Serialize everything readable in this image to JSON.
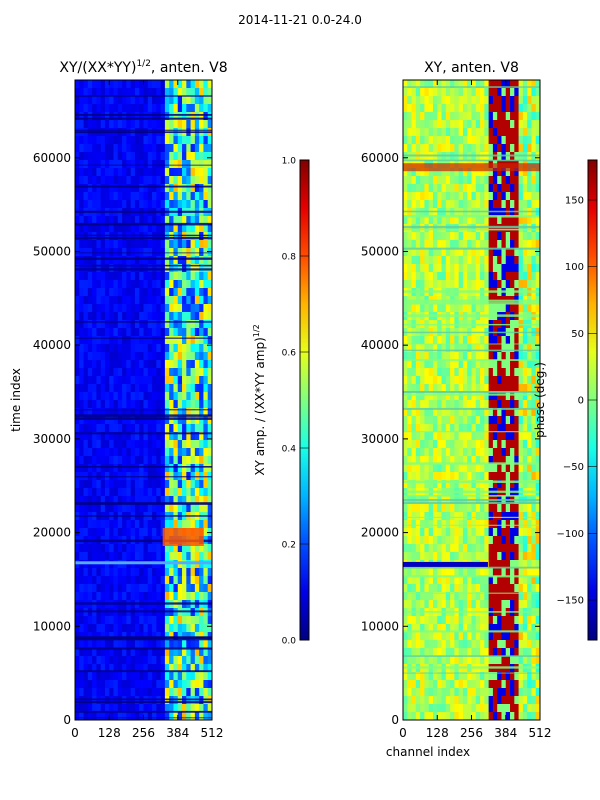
{
  "figure_title": "2014-11-21 0.0-24.0",
  "chart_data": [
    {
      "type": "heatmap",
      "title": "XY/(XX*YY)^1/2, anten. V8",
      "title_main": "XY/(XX*YY)",
      "title_exp": "1/2",
      "title_tail": ", anten. V8",
      "xlabel": "",
      "ylabel": "time index",
      "xlim": [
        0,
        512
      ],
      "ylim": [
        0,
        68300
      ],
      "xticks": [
        0,
        128,
        256,
        384,
        512
      ],
      "yticks": [
        0,
        10000,
        20000,
        30000,
        40000,
        50000,
        60000
      ],
      "colorbar": {
        "label": "XY amp. / (XX*YY amp)^1/2",
        "label_main": "XY amp. / (XX*YY amp)",
        "label_exp": "1/2",
        "range": [
          0.0,
          1.0
        ],
        "ticks": [
          "0.0",
          "0.2",
          "0.4",
          "0.6",
          "0.8",
          "1.0"
        ],
        "tick_values": [
          0.0,
          0.2,
          0.4,
          0.6,
          0.8,
          1.0
        ],
        "colormap": "jet"
      }
    },
    {
      "type": "heatmap",
      "title": "XY, anten. V8",
      "xlabel": "channel index",
      "ylabel": "",
      "xlim": [
        0,
        512
      ],
      "ylim": [
        0,
        68300
      ],
      "xticks": [
        0,
        128,
        256,
        384,
        512
      ],
      "yticks": [
        0,
        10000,
        20000,
        30000,
        40000,
        50000,
        60000
      ],
      "colorbar": {
        "label": "phase (deg.)",
        "range": [
          -180,
          180
        ],
        "ticks": [
          "−150",
          "−100",
          "−50",
          "0",
          "50",
          "100",
          "150"
        ],
        "tick_values": [
          -150,
          -100,
          -50,
          0,
          50,
          100,
          150
        ],
        "colormap": "jet"
      }
    }
  ]
}
